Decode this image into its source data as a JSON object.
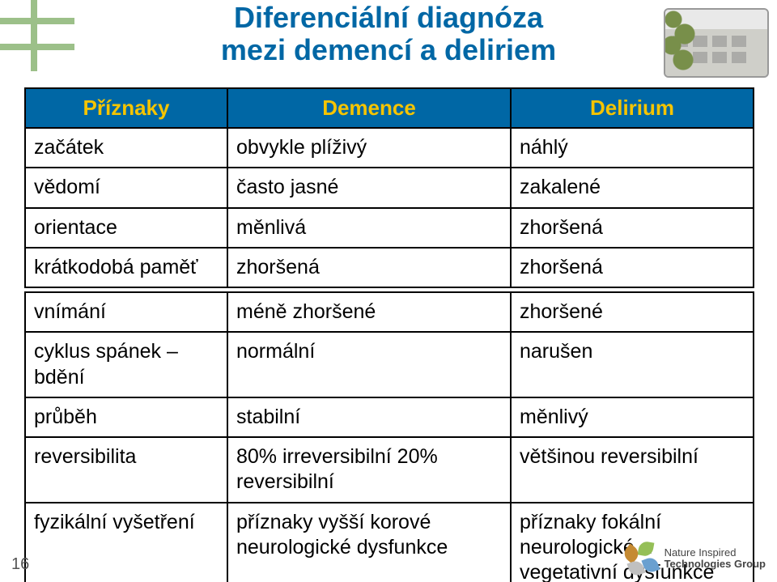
{
  "colors": {
    "title": "#0067a5",
    "table_header_bg": "#0067a5",
    "table_header_fg": "#f5c400",
    "table_border": "#000000",
    "body_text": "#000000",
    "accent_green": "#9cc089",
    "page_num": "#555555",
    "background": "#ffffff"
  },
  "typography": {
    "title_size": 36,
    "header_size": 26,
    "cell_size": 25,
    "page_num_size": 20,
    "font_family": "Verdana, Arial, sans-serif"
  },
  "title": {
    "line1": "Diferenciální diagnóza",
    "line2": "mezi demencí a deliriem"
  },
  "headers": {
    "c1": "Příznaky",
    "c2": "Demence",
    "c3": "Delirium"
  },
  "table_top": {
    "rows": [
      {
        "label": "začátek",
        "demence": "obvykle plíživý",
        "delirium": "náhlý"
      },
      {
        "label": "vědomí",
        "demence": "často jasné",
        "delirium": "zakalené"
      },
      {
        "label": "orientace",
        "demence": "měnlivá",
        "delirium": "zhoršená"
      },
      {
        "label": "krátkodobá paměť",
        "demence": "zhoršená",
        "delirium": "zhoršená"
      }
    ]
  },
  "table_bottom": {
    "rows": [
      {
        "label": "vnímání",
        "demence": "méně zhoršené",
        "delirium": "zhoršené"
      },
      {
        "label": "cyklus spánek – bdění",
        "demence": "normální",
        "delirium": "narušen"
      },
      {
        "label": "průběh",
        "demence": "stabilní",
        "delirium": "měnlivý"
      },
      {
        "label": "reversibilita",
        "demence": "80% irreversibilní 20% reversibilní",
        "delirium": "většinou reversibilní"
      },
      {
        "label": "fyzikální vyšetření",
        "demence": "příznaky vyšší korové neurologické dysfunkce",
        "delirium": "příznaky fokální neurologické a vegetativní dysfunkce"
      }
    ]
  },
  "page_number": "16",
  "logo": {
    "line1": "Nature Inspired",
    "line2": "Technologies Group"
  }
}
